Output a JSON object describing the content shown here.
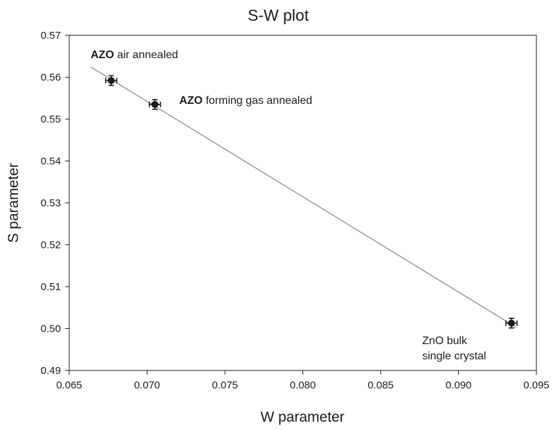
{
  "chart_data": {
    "type": "scatter",
    "title": "S-W plot",
    "xlabel": "W parameter",
    "ylabel": "S parameter",
    "xlim": [
      0.065,
      0.095
    ],
    "ylim": [
      0.49,
      0.57
    ],
    "x_ticks": [
      "0.065",
      "0.070",
      "0.075",
      "0.080",
      "0.085",
      "0.090",
      "0.095"
    ],
    "y_ticks": [
      "0.49",
      "0.50",
      "0.51",
      "0.52",
      "0.53",
      "0.54",
      "0.55",
      "0.56",
      "0.57"
    ],
    "grid": false,
    "series": [
      {
        "points": [
          {
            "x": 0.0677,
            "y": 0.5592,
            "label": "AZO air annealed"
          },
          {
            "x": 0.0705,
            "y": 0.5535,
            "label": "AZO forming gas annealed"
          },
          {
            "x": 0.0934,
            "y": 0.5013,
            "label": "ZnO bulk single crystal"
          }
        ]
      }
    ],
    "fit_line": {
      "x": [
        0.0664,
        0.0937
      ],
      "y": [
        0.5624,
        0.5003
      ]
    },
    "annotations": [
      {
        "bold": "AZO",
        "text": " air annealed"
      },
      {
        "bold": "AZO",
        "text": " forming gas annealed"
      },
      {
        "bold": "",
        "lines": [
          "ZnO bulk",
          "single crystal"
        ]
      }
    ],
    "colors": {
      "points": "#1a1a1a",
      "line": "#8c8c8c",
      "axes": "#1a1a1a"
    }
  }
}
